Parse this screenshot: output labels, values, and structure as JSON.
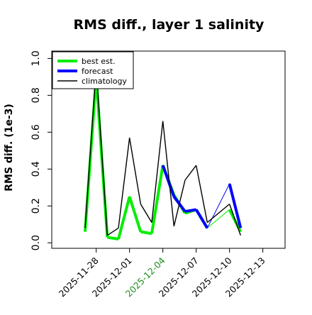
{
  "chart_data": {
    "type": "line",
    "title": "RMS diff., layer 1 salinity",
    "xlabel": "",
    "ylabel": "RMS diff. (1e-3)",
    "ylim": [
      -0.03,
      1.04
    ],
    "yticks": [
      0.0,
      0.2,
      0.4,
      0.6,
      0.8,
      1.0
    ],
    "ytick_labels": [
      "0.0",
      "0.2",
      "0.4",
      "0.6",
      "0.8",
      "1.0"
    ],
    "xlim": [
      "2025-11-24",
      "2025-12-15"
    ],
    "xticks": [
      "2025-11-28",
      "2025-12-01",
      "2025-12-04",
      "2025-12-07",
      "2025-12-10",
      "2025-12-13"
    ],
    "xtick_labels": [
      "2025-11-28",
      "2025-12-01",
      "2025-12-04",
      "2025-12-07",
      "2025-12-10",
      "2025-12-13"
    ],
    "highlighted_xtick": "2025-12-04",
    "highlight_color": "#228B22",
    "grid": false,
    "legend_position": "top-left",
    "series": [
      {
        "name": "best est.",
        "color": "#00ee00",
        "x": [
          "2025-11-27",
          "2025-11-28",
          "2025-11-29",
          "2025-11-30",
          "2025-12-01",
          "2025-12-02",
          "2025-12-03",
          "2025-12-04",
          "2025-12-05",
          "2025-12-06",
          "2025-12-07",
          "2025-12-08",
          "2025-12-10",
          "2025-12-11"
        ],
        "values": [
          0.06,
          0.9,
          0.03,
          0.02,
          0.25,
          0.06,
          0.05,
          0.42,
          0.26,
          0.16,
          0.18,
          0.08,
          0.18,
          0.06
        ]
      },
      {
        "name": "forecast",
        "color": "#0000ff",
        "x": [
          "2025-12-04",
          "2025-12-05",
          "2025-12-06",
          "2025-12-07",
          "2025-12-08",
          "2025-12-10",
          "2025-12-11"
        ],
        "values": [
          0.42,
          0.25,
          0.17,
          0.18,
          0.08,
          0.32,
          0.08
        ]
      },
      {
        "name": "climatology",
        "color": "#000000",
        "x": [
          "2025-11-27",
          "2025-11-28",
          "2025-11-29",
          "2025-11-30",
          "2025-12-01",
          "2025-12-02",
          "2025-12-03",
          "2025-12-04",
          "2025-12-05",
          "2025-12-06",
          "2025-12-07",
          "2025-12-08",
          "2025-12-10",
          "2025-12-11"
        ],
        "values": [
          0.08,
          0.95,
          0.04,
          0.08,
          0.57,
          0.21,
          0.11,
          0.66,
          0.09,
          0.34,
          0.42,
          0.11,
          0.21,
          0.04
        ]
      }
    ]
  }
}
